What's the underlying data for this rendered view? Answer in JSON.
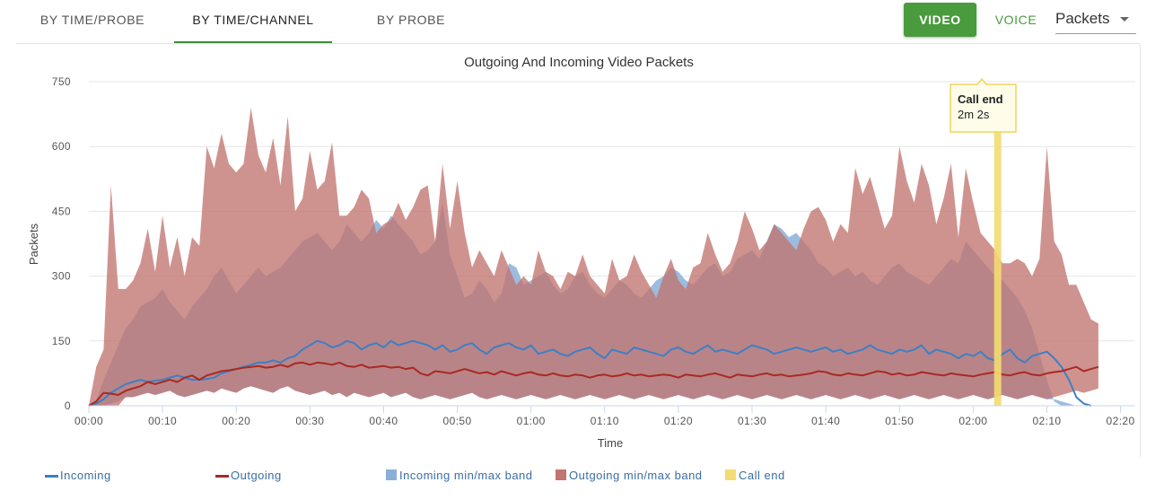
{
  "tabs": [
    {
      "label": "BY TIME/PROBE",
      "active": false
    },
    {
      "label": "BY TIME/CHANNEL",
      "active": true
    },
    {
      "label": "BY PROBE",
      "active": false
    }
  ],
  "toggle": {
    "video": "VIDEO",
    "voice": "VOICE"
  },
  "metric_select": {
    "value": "Packets"
  },
  "colors": {
    "incoming": "#3d7fc4",
    "outgoing": "#a82a22",
    "incoming_band": "#8ab0d8",
    "outgoing_band": "#c27470",
    "call_end": "#f3dc71"
  },
  "chart_data": {
    "type": "line",
    "title": "Outgoing And Incoming Video Packets",
    "xlabel": "Time",
    "ylabel": "Packets",
    "xlim_seconds": [
      0,
      8520
    ],
    "ylim": [
      0,
      750
    ],
    "yticks": [
      0,
      150,
      300,
      450,
      600,
      750
    ],
    "xticks": [
      "00:00",
      "00:10",
      "00:20",
      "00:30",
      "00:40",
      "00:50",
      "01:00",
      "01:10",
      "01:20",
      "01:30",
      "01:40",
      "01:50",
      "02:00",
      "02:10",
      "02:20"
    ],
    "step_seconds": 60,
    "grid": true,
    "legend_position": "bottom",
    "series": [
      {
        "name": "Incoming",
        "kind": "line",
        "values": [
          0,
          5,
          15,
          30,
          40,
          50,
          55,
          60,
          55,
          58,
          60,
          65,
          70,
          65,
          60,
          60,
          62,
          65,
          75,
          80,
          85,
          90,
          95,
          100,
          100,
          105,
          100,
          110,
          115,
          130,
          140,
          150,
          145,
          135,
          140,
          150,
          145,
          130,
          140,
          145,
          135,
          150,
          140,
          145,
          150,
          145,
          140,
          130,
          140,
          125,
          130,
          140,
          145,
          130,
          120,
          135,
          140,
          145,
          135,
          130,
          140,
          120,
          125,
          130,
          120,
          115,
          125,
          130,
          135,
          120,
          110,
          130,
          125,
          120,
          135,
          130,
          125,
          120,
          115,
          130,
          135,
          125,
          120,
          130,
          140,
          125,
          130,
          125,
          120,
          130,
          140,
          135,
          130,
          120,
          125,
          130,
          135,
          130,
          125,
          130,
          135,
          125,
          130,
          120,
          125,
          130,
          140,
          130,
          125,
          120,
          130,
          125,
          130,
          140,
          120,
          130,
          125,
          120,
          110,
          120,
          115,
          125,
          110,
          105,
          120,
          130,
          110,
          100,
          115,
          120,
          125,
          110,
          90,
          60,
          20,
          5,
          0
        ]
      },
      {
        "name": "Outgoing",
        "kind": "line",
        "values": [
          0,
          10,
          30,
          28,
          25,
          35,
          40,
          45,
          55,
          50,
          55,
          60,
          55,
          65,
          70,
          60,
          70,
          75,
          80,
          82,
          85,
          88,
          90,
          92,
          88,
          90,
          95,
          90,
          98,
          100,
          95,
          100,
          98,
          95,
          100,
          92,
          90,
          95,
          88,
          90,
          92,
          88,
          90,
          85,
          88,
          75,
          70,
          80,
          78,
          75,
          80,
          85,
          80,
          75,
          78,
          72,
          80,
          75,
          70,
          75,
          78,
          72,
          70,
          75,
          70,
          68,
          72,
          70,
          65,
          70,
          72,
          68,
          70,
          75,
          70,
          72,
          68,
          70,
          72,
          70,
          65,
          72,
          70,
          68,
          72,
          75,
          70,
          65,
          72,
          70,
          68,
          72,
          75,
          70,
          72,
          68,
          70,
          72,
          75,
          80,
          78,
          72,
          70,
          75,
          72,
          70,
          75,
          80,
          78,
          72,
          75,
          70,
          72,
          78,
          75,
          72,
          70,
          75,
          72,
          70,
          68,
          72,
          75,
          78,
          72,
          70,
          75,
          78,
          72,
          70,
          75,
          78,
          80,
          85,
          90,
          80,
          85,
          90
        ]
      },
      {
        "name": "Incoming min/max band",
        "kind": "band",
        "min": [
          0,
          0,
          0,
          5,
          10,
          20,
          20,
          25,
          30,
          25,
          30,
          35,
          25,
          20,
          25,
          30,
          35,
          30,
          40,
          35,
          30,
          40,
          45,
          40,
          35,
          30,
          40,
          45,
          35,
          30,
          25,
          30,
          35,
          25,
          30,
          20,
          30,
          25,
          20,
          25,
          30,
          20,
          25,
          30,
          20,
          15,
          20,
          25,
          20,
          15,
          20,
          25,
          30,
          20,
          15,
          20,
          25,
          20,
          15,
          20,
          25,
          20,
          15,
          20,
          25,
          20,
          15,
          20,
          25,
          20,
          15,
          20,
          25,
          20,
          15,
          20,
          25,
          20,
          15,
          20,
          25,
          20,
          15,
          20,
          25,
          20,
          15,
          20,
          25,
          20,
          15,
          20,
          25,
          20,
          15,
          20,
          25,
          20,
          15,
          20,
          25,
          20,
          15,
          20,
          25,
          20,
          15,
          20,
          25,
          20,
          15,
          20,
          25,
          20,
          15,
          20,
          25,
          20,
          15,
          20,
          25,
          20,
          15,
          20,
          25,
          20,
          15,
          20,
          25,
          20,
          15,
          15,
          10,
          5,
          0,
          0,
          0,
          0
        ],
        "max": [
          0,
          10,
          60,
          100,
          140,
          180,
          200,
          230,
          240,
          250,
          270,
          240,
          220,
          200,
          230,
          250,
          270,
          300,
          320,
          290,
          260,
          280,
          300,
          320,
          300,
          310,
          320,
          340,
          360,
          380,
          390,
          400,
          380,
          360,
          380,
          420,
          400,
          380,
          400,
          430,
          410,
          440,
          420,
          400,
          380,
          350,
          360,
          380,
          470,
          350,
          300,
          250,
          260,
          290,
          270,
          240,
          260,
          330,
          320,
          280,
          290,
          300,
          310,
          280,
          260,
          270,
          300,
          310,
          280,
          260,
          250,
          270,
          290,
          280,
          260,
          250,
          270,
          290,
          300,
          320,
          310,
          290,
          280,
          300,
          320,
          330,
          300,
          310,
          340,
          350,
          360,
          340,
          380,
          420,
          410,
          390,
          400,
          380,
          360,
          330,
          320,
          300,
          310,
          320,
          300,
          310,
          290,
          280,
          300,
          320,
          330,
          310,
          300,
          290,
          280,
          300,
          320,
          340,
          330,
          380,
          360,
          340,
          320,
          300,
          290,
          270,
          250,
          220,
          180,
          120,
          60,
          10,
          0,
          0,
          0,
          0,
          0
        ]
      },
      {
        "name": "Outgoing min/max band",
        "kind": "band",
        "min": [
          0,
          0,
          0,
          0,
          0,
          20,
          20,
          25,
          30,
          25,
          30,
          35,
          25,
          20,
          25,
          30,
          35,
          30,
          40,
          35,
          30,
          40,
          45,
          40,
          35,
          30,
          40,
          45,
          35,
          30,
          25,
          30,
          35,
          25,
          30,
          20,
          30,
          25,
          20,
          25,
          30,
          20,
          25,
          30,
          20,
          15,
          20,
          25,
          20,
          15,
          20,
          25,
          30,
          20,
          15,
          20,
          25,
          20,
          15,
          20,
          25,
          20,
          15,
          20,
          25,
          20,
          15,
          20,
          25,
          20,
          15,
          20,
          25,
          20,
          15,
          20,
          25,
          20,
          15,
          20,
          25,
          20,
          15,
          20,
          25,
          20,
          15,
          20,
          25,
          20,
          15,
          20,
          25,
          20,
          15,
          20,
          25,
          20,
          15,
          20,
          25,
          20,
          15,
          20,
          25,
          20,
          15,
          20,
          25,
          20,
          15,
          20,
          25,
          20,
          15,
          20,
          25,
          20,
          15,
          20,
          25,
          20,
          15,
          20,
          25,
          20,
          15,
          20,
          25,
          20,
          15,
          20,
          25,
          30,
          35,
          30,
          35,
          40
        ],
        "max": [
          0,
          90,
          130,
          510,
          270,
          270,
          290,
          330,
          410,
          310,
          440,
          320,
          390,
          300,
          390,
          370,
          600,
          550,
          630,
          560,
          540,
          560,
          690,
          580,
          540,
          620,
          510,
          670,
          450,
          480,
          590,
          500,
          520,
          610,
          440,
          440,
          460,
          500,
          480,
          400,
          420,
          430,
          470,
          430,
          460,
          500,
          510,
          380,
          560,
          410,
          520,
          400,
          320,
          360,
          330,
          300,
          360,
          320,
          280,
          300,
          280,
          360,
          310,
          300,
          270,
          310,
          300,
          350,
          300,
          280,
          260,
          340,
          290,
          300,
          350,
          310,
          280,
          250,
          300,
          340,
          290,
          270,
          320,
          330,
          400,
          350,
          310,
          330,
          380,
          450,
          410,
          360,
          380,
          420,
          400,
          380,
          360,
          410,
          450,
          460,
          430,
          380,
          420,
          400,
          550,
          490,
          530,
          470,
          410,
          440,
          600,
          520,
          470,
          560,
          510,
          420,
          480,
          560,
          390,
          550,
          470,
          400,
          380,
          360,
          330,
          330,
          340,
          330,
          300,
          340,
          600,
          380,
          350,
          280,
          280,
          240,
          200,
          190
        ]
      }
    ],
    "call_end": {
      "label": "Call end",
      "duration_text": "2m 2s",
      "at_seconds": 7400
    }
  },
  "legend": [
    {
      "label": "Incoming",
      "kind": "line",
      "color": "#3d7fc4"
    },
    {
      "label": "Outgoing",
      "kind": "line",
      "color": "#a82a22"
    },
    {
      "label": "Incoming min/max band",
      "kind": "box",
      "color": "#8ab0d8"
    },
    {
      "label": "Outgoing min/max band",
      "kind": "box",
      "color": "#c27470"
    },
    {
      "label": "Call end",
      "kind": "box",
      "color": "#f3dc71"
    }
  ]
}
